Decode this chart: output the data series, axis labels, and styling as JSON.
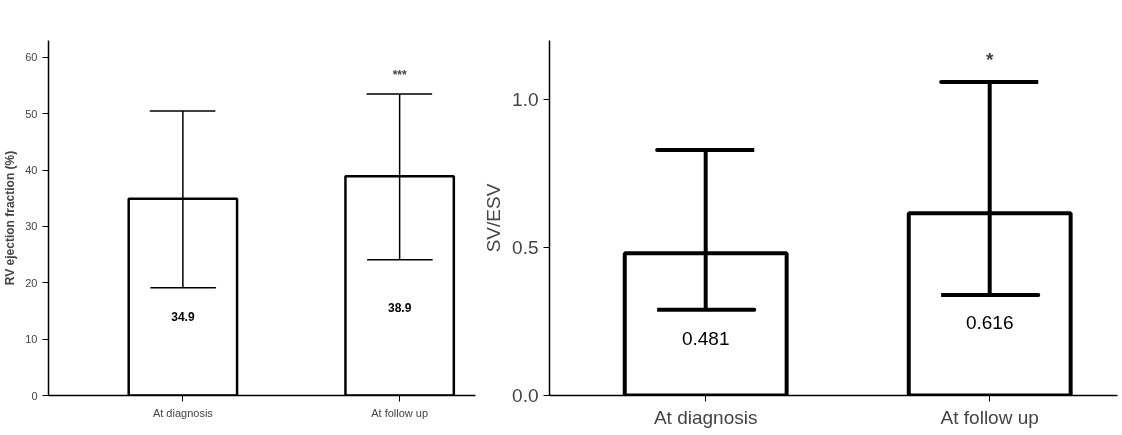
{
  "chart_data": [
    {
      "type": "bar",
      "ylabel": "RV ejection fraction (%)",
      "categories": [
        "At diagnosis",
        "At follow up"
      ],
      "values": [
        34.9,
        38.9
      ],
      "color": "#ffffff",
      "errors": [
        [
          19.1,
          50.5
        ],
        [
          24.1,
          53.5
        ]
      ],
      "data_labels": true,
      "ylim": [
        0,
        63
      ],
      "yticks": [
        0,
        10,
        20,
        30,
        40,
        50,
        60
      ],
      "grid": false,
      "annotations": [
        "***"
      ]
    },
    {
      "type": "bar",
      "ylabel": "SV/ESV",
      "categories": [
        "At diagnosis",
        "At follow up"
      ],
      "values": [
        0.481,
        0.616
      ],
      "color": "#ffffff",
      "errors": [
        [
          0.29,
          0.83
        ],
        [
          0.34,
          1.06
        ]
      ],
      "data_labels": true,
      "ylim": [
        0,
        1.2
      ],
      "yticks": [
        {
          "value": 0,
          "label": "0.0"
        },
        {
          "value": 0.5,
          "label": "0.5"
        },
        {
          "value": 1,
          "label": "1.0"
        }
      ],
      "grid": false,
      "annotations": [
        "*"
      ]
    }
  ]
}
